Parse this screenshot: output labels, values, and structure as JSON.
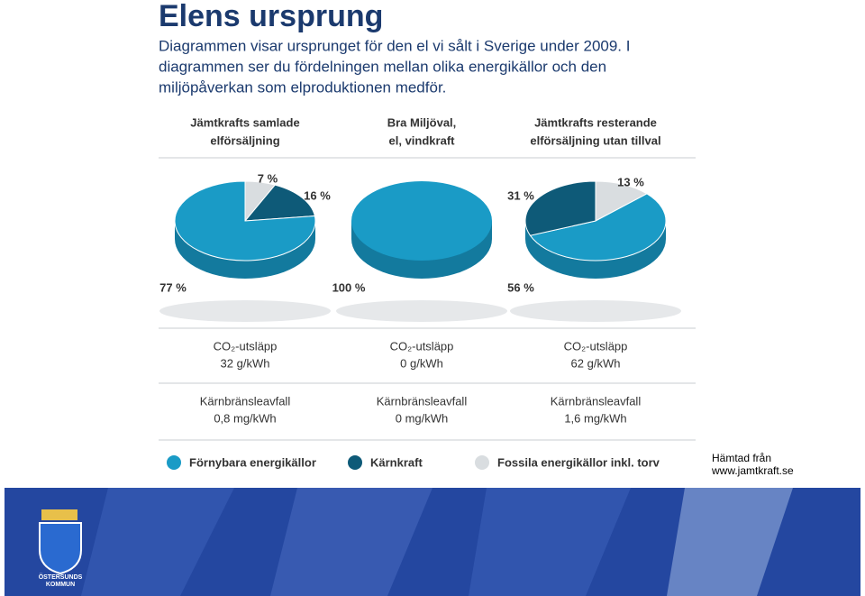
{
  "page": {
    "title": "Elens ursprung",
    "intro": [
      "Diagrammen visar ursprunget för den el vi sålt i Sverige under 2009. I",
      "diagrammen ser du fördelningen mellan olika energikällor och den",
      "miljöpåverkan som elproduktionen medför."
    ],
    "source": [
      "Hämtad från",
      "www.jamtkraft.se"
    ],
    "logo_text": [
      "ÖSTERSUNDS",
      "KOMMUN"
    ]
  },
  "chart_data": [
    {
      "type": "pie",
      "title": [
        "Jämtkrafts samlade",
        "elförsäljning"
      ],
      "categories": [
        "Förnybara energikällor",
        "Kärnkraft",
        "Fossila energikällor inkl. torv"
      ],
      "values": [
        77,
        16,
        7
      ],
      "value_labels": [
        "77 %",
        "16 %",
        "7 %"
      ],
      "colors": [
        "#1a9bc6",
        "#0e5a78",
        "#d9dde0"
      ],
      "co2": [
        "CO₂-utsläpp",
        "32 g/kWh"
      ],
      "waste": [
        "Kärnbränsleavfall",
        "0,8 mg/kWh"
      ]
    },
    {
      "type": "pie",
      "title": [
        "Bra Miljöval,",
        "el, vindkraft"
      ],
      "categories": [
        "Förnybara energikällor"
      ],
      "values": [
        100
      ],
      "value_labels": [
        "100 %"
      ],
      "colors": [
        "#1a9bc6"
      ],
      "co2": [
        "CO₂-utsläpp",
        "0 g/kWh"
      ],
      "waste": [
        "Kärnbränsleavfall",
        "0 mg/kWh"
      ]
    },
    {
      "type": "pie",
      "title": [
        "Jämtkrafts resterande",
        "elförsäljning utan tillval"
      ],
      "categories": [
        "Förnybara energikällor",
        "Kärnkraft",
        "Fossila energikällor inkl. torv"
      ],
      "values": [
        56,
        31,
        13
      ],
      "value_labels": [
        "56 %",
        "31 %",
        "13 %"
      ],
      "colors": [
        "#1a9bc6",
        "#0e5a78",
        "#d9dde0"
      ],
      "co2": [
        "CO₂-utsläpp",
        "62 g/kWh"
      ],
      "waste": [
        "Kärnbränsleavfall",
        "1,6 mg/kWh"
      ]
    }
  ]
}
